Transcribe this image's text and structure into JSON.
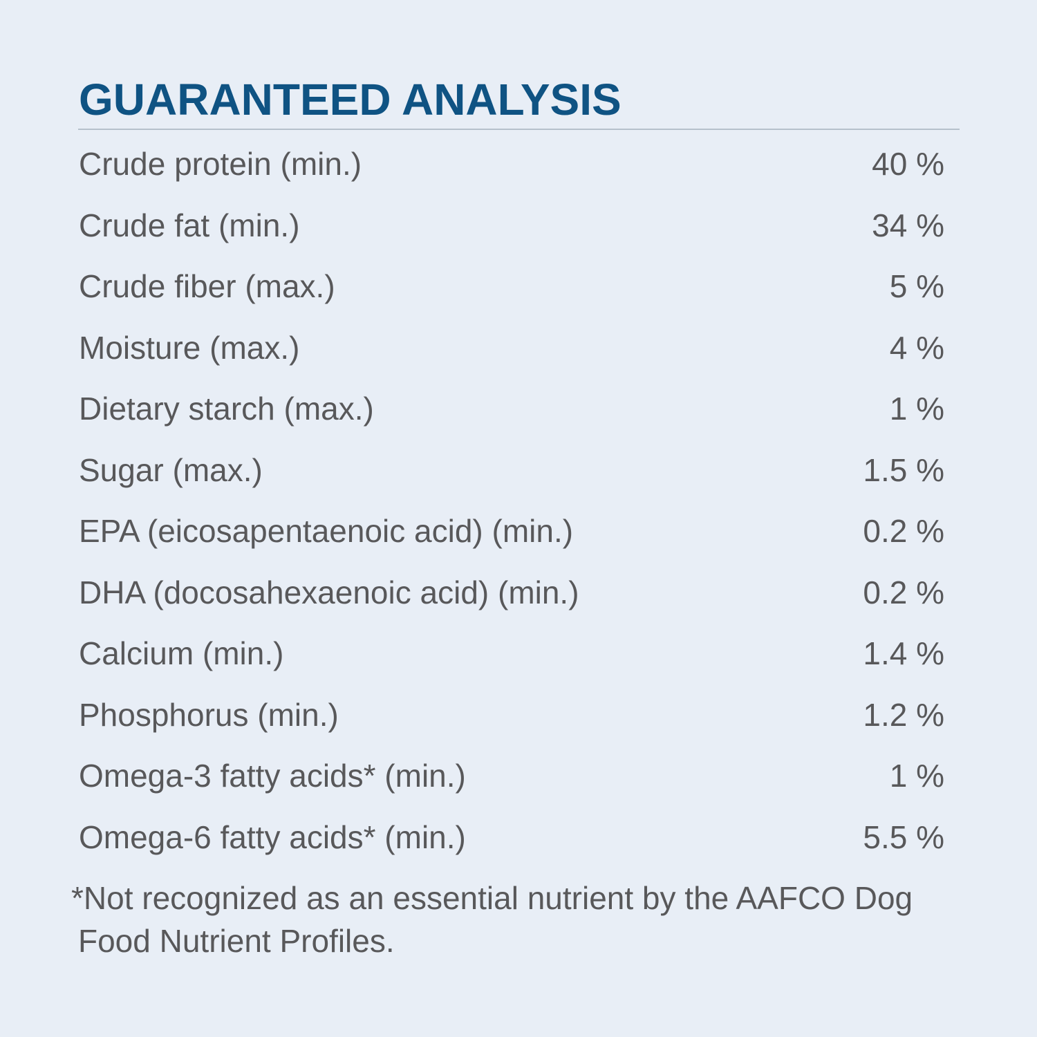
{
  "title": "GUARANTEED ANALYSIS",
  "rows": [
    {
      "label": "Crude protein (min.)",
      "value": "40 %"
    },
    {
      "label": "Crude fat (min.)",
      "value": "34 %"
    },
    {
      "label": "Crude fiber (max.)",
      "value": "5 %"
    },
    {
      "label": "Moisture (max.)",
      "value": "4 %"
    },
    {
      "label": "Dietary starch (max.)",
      "value": "1 %"
    },
    {
      "label": "Sugar (max.)",
      "value": "1.5 %"
    },
    {
      "label": "EPA (eicosapentaenoic acid) (min.)",
      "value": "0.2 %"
    },
    {
      "label": "DHA (docosahexaenoic acid) (min.)",
      "value": "0.2 %"
    },
    {
      "label": "Calcium (min.)",
      "value": "1.4 %"
    },
    {
      "label": "Phosphorus (min.)",
      "value": "1.2 %"
    },
    {
      "label": "Omega-3 fatty acids* (min.)",
      "value": "1 %"
    },
    {
      "label": "Omega-6 fatty acids* (min.)",
      "value": "5.5 %"
    }
  ],
  "footnote": {
    "line1": "*Not recognized as an essential nutrient by the AAFCO Dog",
    "line2": "Food Nutrient Profiles."
  },
  "colors": {
    "background": "#e8eef6",
    "title": "#0f5383",
    "text": "#58585a",
    "rule": "#b5c0cc"
  }
}
